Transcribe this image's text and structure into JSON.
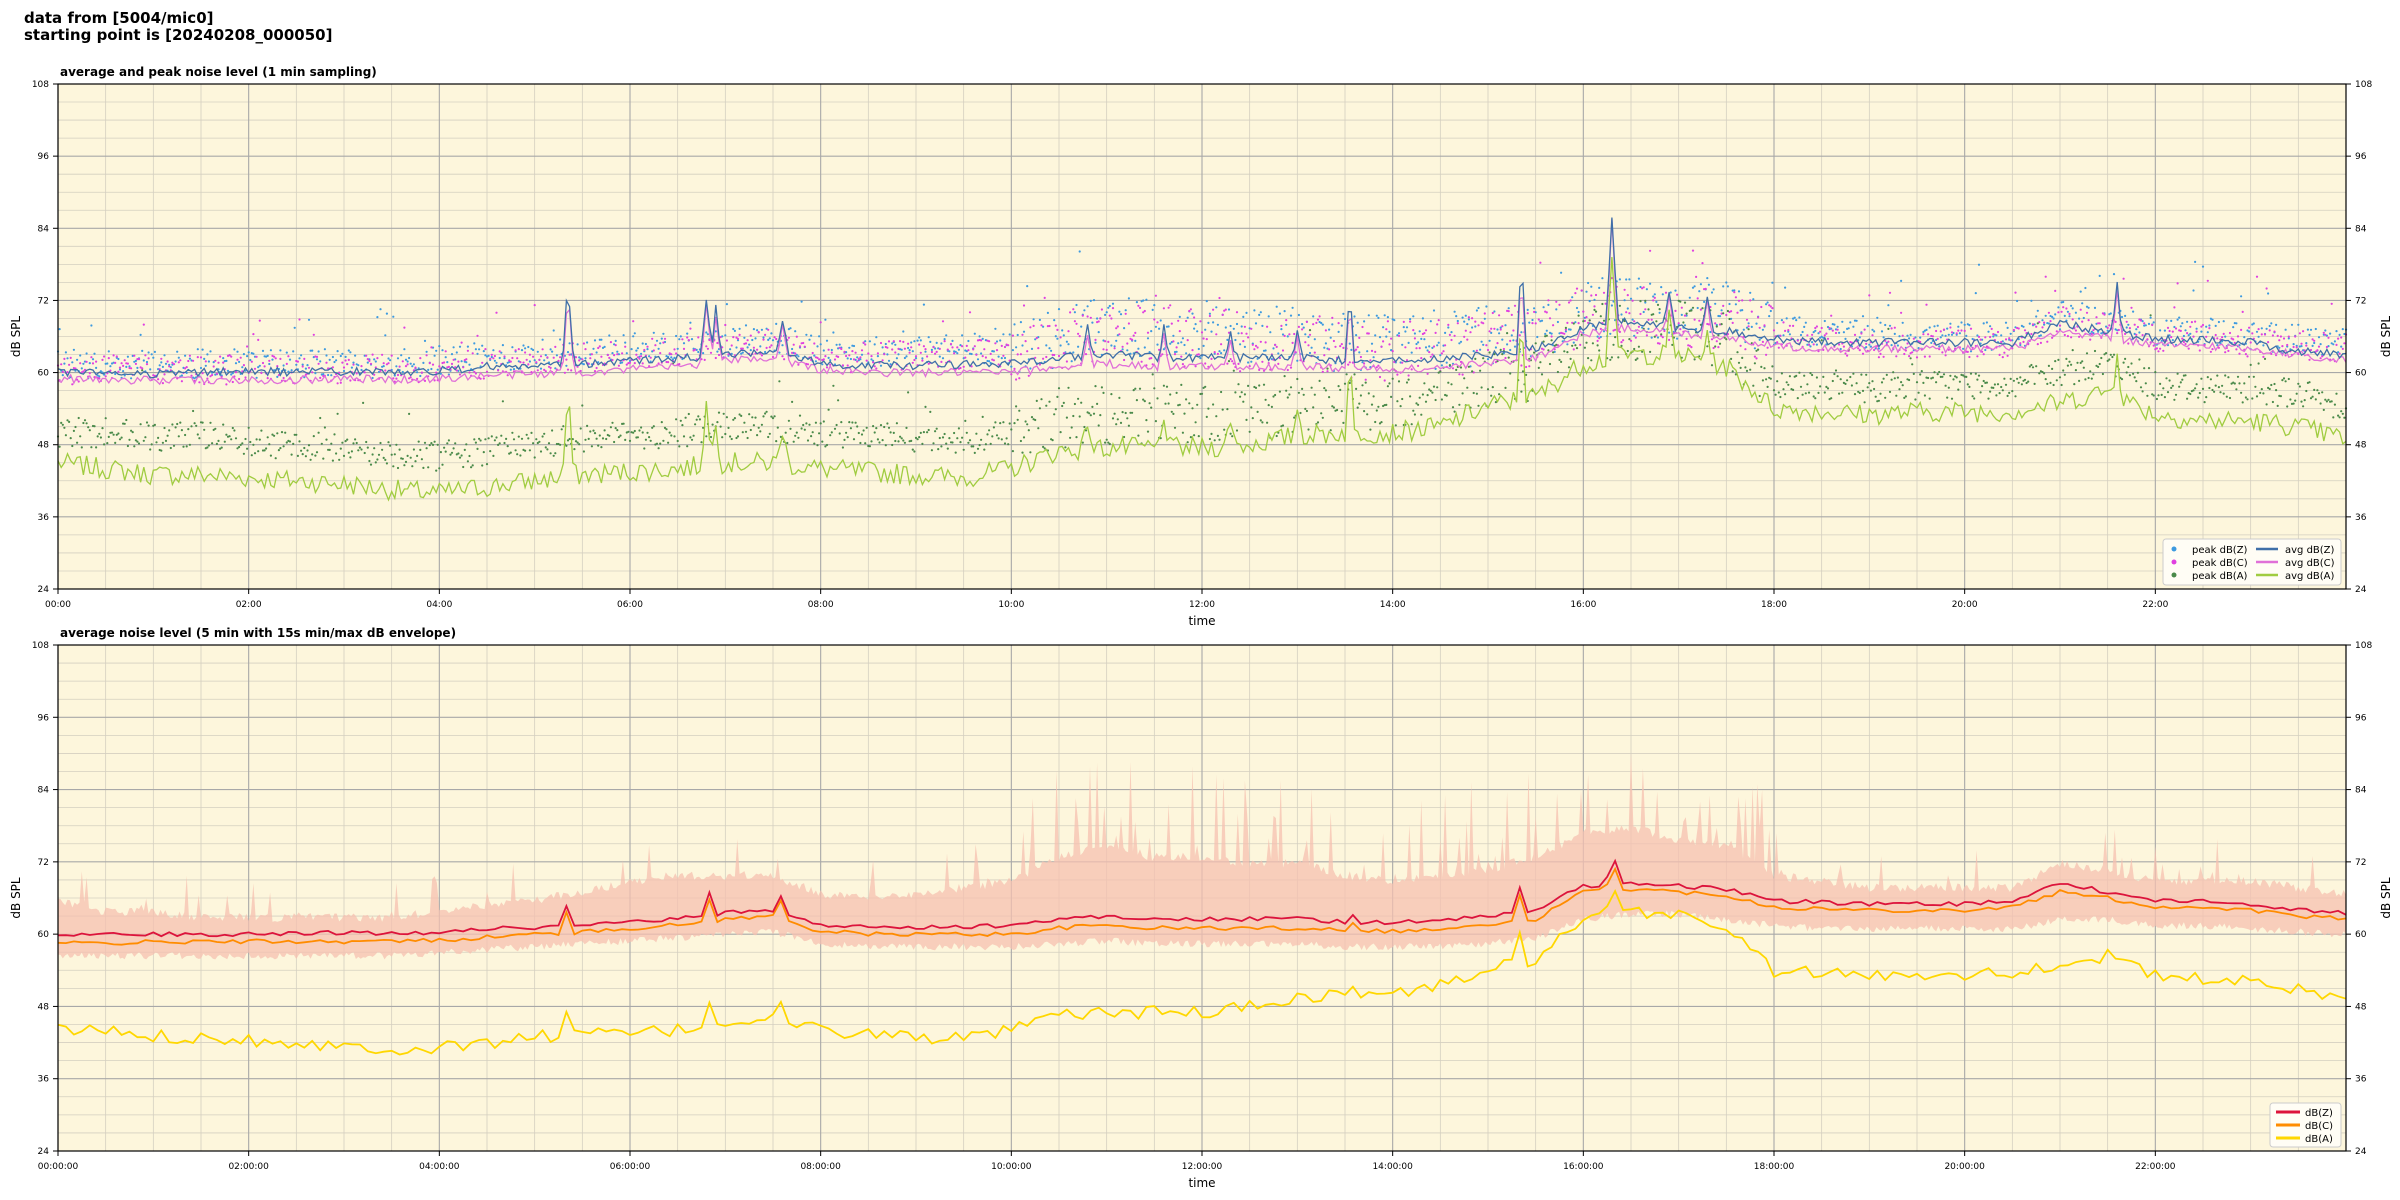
{
  "header": {
    "line1": "data from [5004/mic0]",
    "line2": "starting point is [20240208_000050]"
  },
  "colors": {
    "plot_bg": "#fdf6dc",
    "grid_major": "#a8a8a8",
    "grid_minor": "#d4cfc0",
    "peak_z": "#3d9ae0",
    "peak_c": "#e040e0",
    "peak_a": "#4a8a4a",
    "avg_z": "#3f6fa8",
    "avg_c": "#e070d8",
    "avg_a": "#a0cc40",
    "env_z": "#dc143c",
    "env_c": "#ff8c00",
    "env_a": "#ffd700",
    "envelope_fill": "#f5c0b0"
  },
  "chart_data": [
    {
      "type": "line",
      "title": "average and peak noise level (1 min sampling)",
      "xlabel": "time",
      "ylabel": "dB SPL",
      "ylim": [
        24,
        108
      ],
      "yticks": [
        "24",
        "36",
        "48",
        "60",
        "72",
        "84",
        "96",
        "108"
      ],
      "xlim_hours": [
        0,
        24
      ],
      "xticks": [
        "00:00",
        "02:00",
        "04:00",
        "06:00",
        "08:00",
        "10:00",
        "12:00",
        "14:00",
        "16:00",
        "18:00",
        "20:00",
        "22:00"
      ],
      "grid": true,
      "legend_position": "lower-right",
      "legend": [
        "peak dB(Z)",
        "peak dB(C)",
        "peak dB(A)",
        "avg dB(Z)",
        "avg dB(C)",
        "avg dB(A)"
      ],
      "x_hours": [
        0,
        0.5,
        1,
        1.5,
        2,
        2.5,
        3,
        3.5,
        4,
        4.5,
        5,
        5.5,
        6,
        6.5,
        7,
        7.5,
        8,
        8.5,
        9,
        9.5,
        10,
        10.5,
        11,
        11.5,
        12,
        12.5,
        13,
        13.5,
        14,
        14.5,
        15,
        15.5,
        16,
        16.5,
        17,
        17.5,
        18,
        18.5,
        19,
        19.5,
        20,
        20.5,
        21,
        21.5,
        22,
        22.5,
        23,
        23.5,
        24
      ],
      "series": [
        {
          "name": "avg dB(Z)",
          "style": "line",
          "values": [
            60,
            60,
            59.8,
            60,
            60.2,
            60.1,
            60.2,
            60.1,
            60.3,
            61,
            61,
            61.3,
            62,
            62.3,
            63,
            63.5,
            61.5,
            61.2,
            61.2,
            61.3,
            61.5,
            62.5,
            63,
            62.5,
            62.5,
            62.5,
            62.5,
            62,
            62,
            62.2,
            63,
            64,
            67.5,
            68.5,
            67.5,
            67,
            65.5,
            65.2,
            65,
            65,
            65,
            65,
            68,
            67,
            65.5,
            65.5,
            65,
            63.5,
            63
          ]
        },
        {
          "name": "avg dB(C)",
          "style": "line",
          "values": [
            59,
            58.8,
            58.7,
            58.7,
            58.8,
            58.8,
            59,
            58.8,
            59,
            59.5,
            59.8,
            60,
            60.5,
            61,
            62,
            62.5,
            60.5,
            60,
            60,
            60,
            60,
            61,
            61.5,
            61,
            61,
            61,
            61,
            60.8,
            60.5,
            60.8,
            61.5,
            62.5,
            66.5,
            67.5,
            66.5,
            66,
            64.5,
            64,
            64,
            64,
            64,
            64,
            66.5,
            66,
            64.5,
            64.5,
            64,
            63,
            62
          ]
        },
        {
          "name": "avg dB(A)",
          "style": "line",
          "values": [
            45,
            44,
            43,
            43,
            42.5,
            42,
            41.5,
            40.5,
            40,
            41,
            42,
            43,
            43.5,
            44,
            45,
            45,
            44,
            43.5,
            43,
            42.5,
            44,
            47,
            47.5,
            47.5,
            47.5,
            48,
            49.5,
            50,
            50,
            51,
            54.5,
            56,
            61.5,
            63,
            63,
            61,
            54,
            53.5,
            53,
            53.5,
            53.5,
            53.5,
            55,
            57,
            53,
            52,
            52,
            51,
            49
          ]
        },
        {
          "name": "peak dB(Z)",
          "style": "scatter",
          "values": [
            61.5,
            61.5,
            61.5,
            61.5,
            61.5,
            61.5,
            61.5,
            61.5,
            62,
            62.5,
            63,
            63.5,
            64,
            64.5,
            65,
            66,
            63.5,
            63.5,
            64,
            64,
            64,
            66,
            68,
            67,
            67,
            66,
            66,
            65,
            64.5,
            65,
            66,
            67,
            70.5,
            71,
            70,
            70,
            67,
            66.5,
            66,
            66,
            66,
            66,
            69.5,
            68.5,
            67,
            67,
            66,
            65.5,
            65
          ]
        },
        {
          "name": "peak dB(C)",
          "style": "scatter",
          "values": [
            60.5,
            60.5,
            60.5,
            60.5,
            60.5,
            60.5,
            60.5,
            60.5,
            61,
            61.5,
            62,
            62.5,
            63,
            63.5,
            64,
            65,
            62.5,
            62.5,
            63,
            63,
            63,
            65,
            67,
            66,
            66,
            65,
            65,
            64,
            63.5,
            64,
            65,
            66,
            69.5,
            70,
            69,
            69,
            66,
            65.5,
            65,
            65,
            65,
            65,
            68.5,
            67.5,
            66,
            66,
            65,
            64.5,
            64
          ]
        },
        {
          "name": "peak dB(A)",
          "style": "scatter",
          "values": [
            50,
            50,
            49.5,
            49.5,
            48.5,
            48,
            47.5,
            46.5,
            46,
            47,
            48,
            49,
            49.5,
            50,
            51,
            51,
            50,
            49.5,
            49,
            48.5,
            50,
            52.5,
            53,
            53,
            53,
            53.5,
            55,
            55.5,
            55.5,
            56.5,
            59,
            60.5,
            65,
            67,
            67,
            65.5,
            58.5,
            58,
            57.5,
            58,
            58,
            58,
            60,
            61.5,
            58,
            57.5,
            57.5,
            56.5,
            54.5
          ]
        }
      ]
    },
    {
      "type": "line",
      "title": "average noise level (5 min with 15s min/max dB envelope)",
      "xlabel": "time",
      "ylabel": "dB SPL",
      "ylim": [
        24,
        108
      ],
      "yticks": [
        "24",
        "36",
        "48",
        "60",
        "72",
        "84",
        "96",
        "108"
      ],
      "xlim_hours": [
        0,
        24
      ],
      "xticks": [
        "00:00:00",
        "02:00:00",
        "04:00:00",
        "06:00:00",
        "08:00:00",
        "10:00:00",
        "12:00:00",
        "14:00:00",
        "16:00:00",
        "18:00:00",
        "20:00:00",
        "22:00:00"
      ],
      "grid": true,
      "legend_position": "lower-right",
      "legend": [
        "dB(Z)",
        "dB(C)",
        "dB(A)"
      ],
      "x_hours": [
        0,
        0.5,
        1,
        1.5,
        2,
        2.5,
        3,
        3.5,
        4,
        4.5,
        5,
        5.5,
        6,
        6.5,
        7,
        7.5,
        8,
        8.5,
        9,
        9.5,
        10,
        10.5,
        11,
        11.5,
        12,
        12.5,
        13,
        13.5,
        14,
        14.5,
        15,
        15.5,
        16,
        16.5,
        17,
        17.5,
        18,
        18.5,
        19,
        19.5,
        20,
        20.5,
        21,
        21.5,
        22,
        22.5,
        23,
        23.5,
        24
      ],
      "envelope": {
        "upper": [
          65,
          63,
          63,
          62,
          62,
          62,
          62,
          62,
          63,
          64,
          65,
          66,
          68,
          69,
          69,
          69,
          66,
          65,
          66,
          67,
          68,
          72,
          74,
          72,
          72,
          71,
          71,
          69,
          68,
          69,
          70,
          72,
          76,
          77,
          75,
          74,
          69,
          68,
          67,
          67,
          67,
          67,
          71,
          70,
          68,
          68,
          68,
          67,
          66
        ],
        "lower": [
          57,
          57,
          57,
          57,
          57,
          57,
          57,
          57,
          57.5,
          58,
          58.5,
          59,
          59.5,
          60,
          60.5,
          61,
          59,
          58.5,
          58.5,
          58.5,
          58.5,
          59,
          59.5,
          59,
          59,
          59,
          59,
          58.5,
          58.5,
          58.5,
          59,
          60,
          63,
          64,
          64,
          63,
          62,
          61.5,
          61.5,
          61.5,
          61.5,
          61.5,
          63,
          63,
          62,
          62,
          61.5,
          61,
          60.5
        ]
      },
      "series": [
        {
          "name": "dB(Z)",
          "values": [
            60,
            60,
            60,
            60,
            60,
            60.2,
            60.2,
            60.2,
            60.3,
            61,
            61,
            61.3,
            62,
            62.5,
            63.5,
            64,
            61.5,
            61.2,
            61.2,
            61.2,
            61.5,
            62.5,
            63,
            62.5,
            62.5,
            62.5,
            62.5,
            62,
            62,
            62.2,
            63,
            64,
            68,
            68.5,
            68,
            67.5,
            65.5,
            65.3,
            65,
            65,
            65,
            65.5,
            68.5,
            67,
            65.5,
            65.5,
            65,
            64,
            63.5
          ]
        },
        {
          "name": "dB(C)",
          "values": [
            58.5,
            58.5,
            58.7,
            58.7,
            58.8,
            58.8,
            58.8,
            58.8,
            59,
            59.5,
            60,
            60.3,
            61,
            61.5,
            62.5,
            63,
            60.5,
            60,
            60,
            60,
            60,
            61,
            61.5,
            61,
            61,
            61,
            61,
            60.8,
            60.5,
            60.8,
            61.5,
            62.5,
            67,
            67.5,
            67,
            66.5,
            64.5,
            64.2,
            64,
            64,
            64,
            64.5,
            67,
            66,
            64.5,
            64.5,
            64,
            63,
            62.5
          ]
        },
        {
          "name": "dB(A)",
          "values": [
            44,
            44,
            43,
            43,
            42.5,
            42,
            41.5,
            41,
            41,
            42,
            43,
            43.5,
            43.5,
            44,
            45.5,
            46,
            44,
            43.5,
            43,
            42.5,
            44,
            46.5,
            47,
            47,
            47,
            48,
            49.5,
            50,
            50,
            51.5,
            54,
            56,
            62,
            63.5,
            63.5,
            61,
            54,
            53.5,
            53,
            53.5,
            53.5,
            53.5,
            55,
            56.5,
            53,
            52.5,
            52,
            51,
            49
          ]
        }
      ]
    }
  ]
}
